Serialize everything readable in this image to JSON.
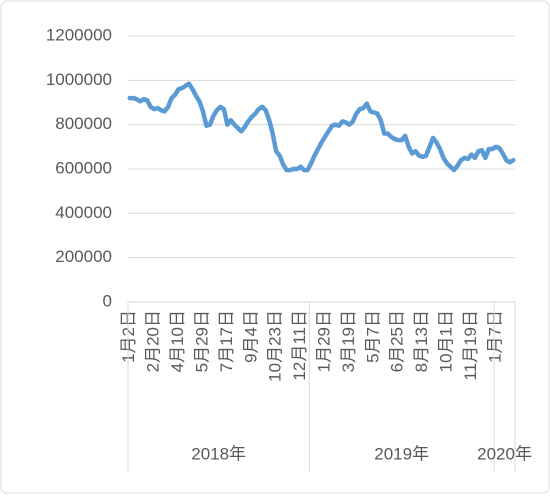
{
  "chart_data": {
    "type": "line",
    "categories": [
      "1月2日",
      null,
      null,
      null,
      null,
      null,
      null,
      "2月20日",
      null,
      null,
      null,
      null,
      null,
      null,
      "4月10日",
      null,
      null,
      null,
      null,
      null,
      null,
      "5月29日",
      null,
      null,
      null,
      null,
      null,
      null,
      "7月17日",
      null,
      null,
      null,
      null,
      null,
      null,
      "9月4日",
      null,
      null,
      null,
      null,
      null,
      null,
      "10月23日",
      null,
      null,
      null,
      null,
      null,
      null,
      "12月11日",
      null,
      null,
      null,
      null,
      null,
      null,
      "1月29日",
      null,
      null,
      null,
      null,
      null,
      null,
      "3月19日",
      null,
      null,
      null,
      null,
      null,
      null,
      "5月7日",
      null,
      null,
      null,
      null,
      null,
      null,
      "6月25日",
      null,
      null,
      null,
      null,
      null,
      null,
      "8月13日",
      null,
      null,
      null,
      null,
      null,
      null,
      "10月1日",
      null,
      null,
      null,
      null,
      null,
      null,
      "11月19日",
      null,
      null,
      null,
      null,
      null,
      null,
      "1月7日",
      null,
      null,
      null,
      null,
      null
    ],
    "x_groups": [
      {
        "label": "2018年",
        "count": 52
      },
      {
        "label": "2019年",
        "count": 53
      },
      {
        "label": "2020年",
        "count": 6
      }
    ],
    "series": [
      {
        "color": "#5b9bd5",
        "values": [
          920000,
          920000,
          915000,
          905000,
          915000,
          910000,
          880000,
          870000,
          875000,
          865000,
          860000,
          880000,
          920000,
          935000,
          960000,
          965000,
          975000,
          985000,
          960000,
          930000,
          905000,
          860000,
          795000,
          800000,
          840000,
          865000,
          880000,
          870000,
          800000,
          820000,
          800000,
          785000,
          770000,
          790000,
          815000,
          835000,
          850000,
          870000,
          880000,
          865000,
          820000,
          760000,
          680000,
          660000,
          620000,
          595000,
          595000,
          600000,
          600000,
          610000,
          595000,
          595000,
          625000,
          660000,
          690000,
          720000,
          745000,
          770000,
          795000,
          800000,
          795000,
          815000,
          810000,
          800000,
          815000,
          850000,
          870000,
          875000,
          895000,
          860000,
          855000,
          850000,
          820000,
          760000,
          760000,
          745000,
          735000,
          730000,
          730000,
          750000,
          700000,
          670000,
          680000,
          660000,
          655000,
          660000,
          700000,
          740000,
          720000,
          690000,
          650000,
          625000,
          610000,
          595000,
          615000,
          640000,
          650000,
          645000,
          665000,
          650000,
          680000,
          685000,
          650000,
          690000,
          690000,
          700000,
          695000,
          670000,
          640000,
          630000,
          640000
        ]
      }
    ],
    "ylim": [
      0,
      1200000
    ],
    "yticks": [
      0,
      200000,
      400000,
      600000,
      800000,
      1000000,
      1200000
    ],
    "grid": true
  }
}
